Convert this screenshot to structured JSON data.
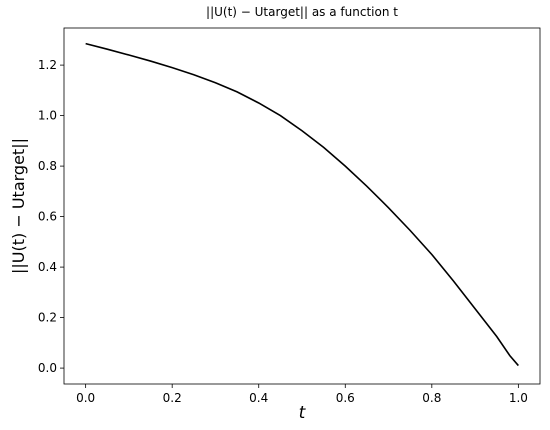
{
  "chart_data": {
    "type": "line",
    "title": "||U(t) − Utarget|| as a function t",
    "x_label": "t",
    "y_label": "||U(t) − Utarget||",
    "x": [
      0,
      0.05,
      0.1,
      0.15,
      0.2,
      0.25,
      0.3,
      0.35,
      0.4,
      0.45,
      0.5,
      0.55,
      0.6,
      0.65,
      0.7,
      0.75,
      0.8,
      0.85,
      0.9,
      0.95,
      0.98,
      1.0
    ],
    "series": [
      {
        "name": "||U(t) − Utarget||",
        "color": "#000000",
        "values": [
          1.285,
          1.263,
          1.24,
          1.216,
          1.19,
          1.162,
          1.13,
          1.094,
          1.05,
          1.0,
          0.94,
          0.874,
          0.8,
          0.72,
          0.635,
          0.545,
          0.45,
          0.345,
          0.235,
          0.125,
          0.05,
          0.01
        ]
      }
    ],
    "xlim": [
      -0.05,
      1.05
    ],
    "ylim": [
      -0.063,
      1.347
    ],
    "xticks": [
      {
        "value": 0,
        "label": "0.0"
      },
      0.2,
      0.4,
      0.6,
      0.8,
      {
        "value": 1,
        "label": "1.0"
      }
    ],
    "yticks": [
      {
        "value": 0,
        "label": "0.0"
      },
      0.2,
      0.4,
      0.6,
      0.8,
      {
        "value": 1,
        "label": "1.0"
      },
      1.2
    ],
    "grid": false
  }
}
